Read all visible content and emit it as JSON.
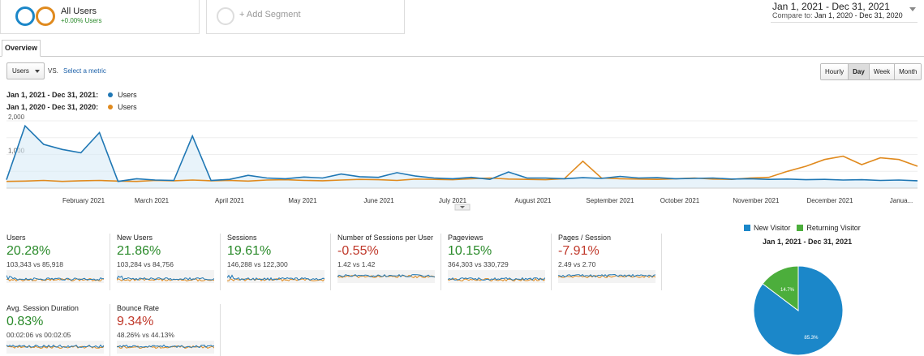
{
  "segments": {
    "all_users": {
      "name": "All Users",
      "change": "+0.00% Users"
    },
    "add_segment": {
      "label": "+ Add Segment"
    }
  },
  "date_range": {
    "main": "Jan 1, 2021 - Dec 31, 2021",
    "compare_prefix": "Compare to:",
    "compare": "Jan 1, 2020 - Dec 31, 2020"
  },
  "tabs": {
    "overview": "Overview"
  },
  "controls": {
    "metric": "Users",
    "vs": "VS.",
    "select_metric": "Select a metric",
    "granularity": [
      "Hourly",
      "Day",
      "Week",
      "Month"
    ],
    "active_granularity": "Day"
  },
  "legend": {
    "current_range": "Jan 1, 2021 - Dec 31, 2021:",
    "current_series": "Users",
    "prior_range": "Jan 1, 2020 - Dec 31, 2020:",
    "prior_series": "Users"
  },
  "colors": {
    "current": "#1f77b4",
    "prior": "#e08a1e",
    "area": "#d8ebf7",
    "new_visitor": "#1b87c9",
    "returning_visitor": "#4cae3c"
  },
  "chart_data": [
    {
      "type": "line",
      "y_ticks": [
        "2,000",
        "1,000"
      ],
      "ylim": [
        0,
        2000
      ],
      "x_ticks": [
        "February 2021",
        "March 2021",
        "April 2021",
        "May 2021",
        "June 2021",
        "July 2021",
        "August 2021",
        "September 2021",
        "October 2021",
        "November 2021",
        "December 2021",
        "Janua..."
      ],
      "series": [
        {
          "name": "Users",
          "values": [
            250,
            1850,
            1300,
            1150,
            1050,
            1650,
            200,
            280,
            240,
            230,
            1550,
            230,
            260,
            380,
            300,
            280,
            330,
            300,
            420,
            340,
            320,
            460,
            360,
            300,
            280,
            320,
            260,
            480,
            300,
            300,
            280,
            310,
            290,
            350,
            300,
            310,
            280,
            290,
            300,
            270,
            280,
            260,
            270,
            250,
            260,
            240,
            250,
            230,
            240,
            220
          ]
        },
        {
          "name": "Users",
          "values": [
            200,
            210,
            230,
            200,
            220,
            230,
            210,
            200,
            230,
            220,
            240,
            220,
            230,
            210,
            240,
            250,
            230,
            220,
            240,
            260,
            250,
            230,
            270,
            260,
            250,
            280,
            300,
            270,
            260,
            250,
            280,
            800,
            300,
            280,
            270,
            260,
            280,
            300,
            270,
            260,
            300,
            320,
            500,
            650,
            850,
            950,
            700,
            900,
            850,
            650
          ]
        }
      ]
    },
    {
      "type": "pie",
      "title": "Jan 1, 2021 - Dec 31, 2021",
      "legend": [
        "New Visitor",
        "Returning Visitor"
      ],
      "values": [
        85.3,
        14.7
      ],
      "labels": [
        "85.3%",
        "14.7%"
      ]
    }
  ],
  "tiles": [
    {
      "label": "Users",
      "pct": "20.28%",
      "trend": "pos",
      "compare": "103,343 vs 85,918"
    },
    {
      "label": "New Users",
      "pct": "21.86%",
      "trend": "pos",
      "compare": "103,284 vs 84,756"
    },
    {
      "label": "Sessions",
      "pct": "19.61%",
      "trend": "pos",
      "compare": "146,288 vs 122,300"
    },
    {
      "label": "Number of Sessions per User",
      "pct": "-0.55%",
      "trend": "neg",
      "compare": "1.42 vs 1.42"
    },
    {
      "label": "Pageviews",
      "pct": "10.15%",
      "trend": "pos",
      "compare": "364,303 vs 330,729"
    },
    {
      "label": "Pages / Session",
      "pct": "-7.91%",
      "trend": "neg",
      "compare": "2.49 vs 2.70"
    },
    {
      "label": "Avg. Session Duration",
      "pct": "0.83%",
      "trend": "pos",
      "compare": "00:02:06 vs 00:02:05"
    },
    {
      "label": "Bounce Rate",
      "pct": "9.34%",
      "trend": "neg",
      "compare": "48.26% vs 44.13%"
    }
  ]
}
